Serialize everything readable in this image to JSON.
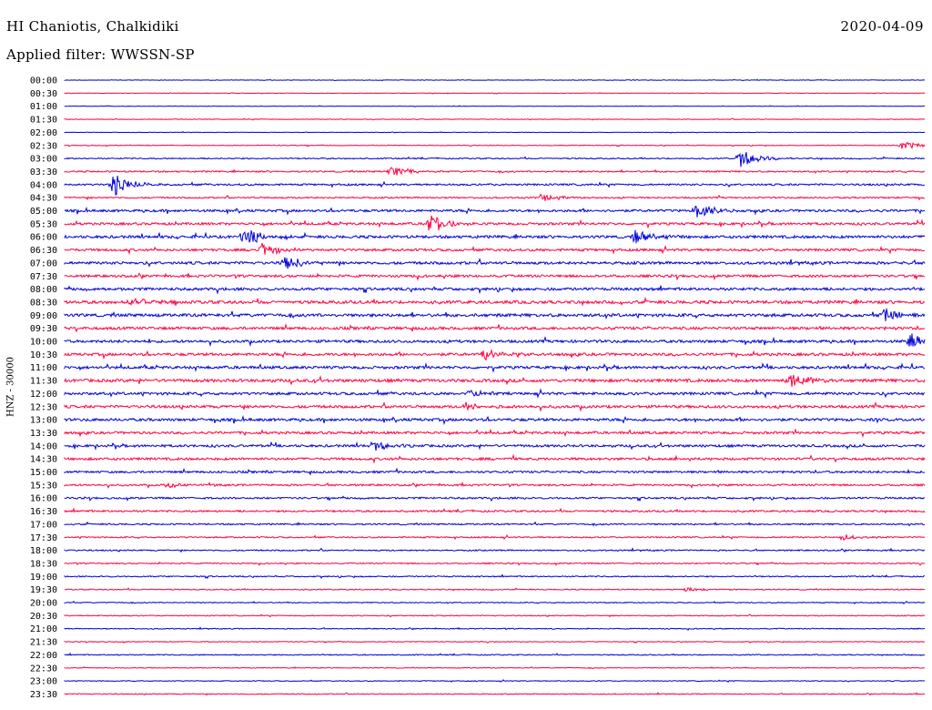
{
  "header": {
    "title": "HI Chaniotis, Chalkidiki",
    "date": "2020-04-09",
    "filter": "Applied filter: WWSSN-SP"
  },
  "colors": {
    "even_rows": "#0000d8",
    "odd_rows": "#ff0040",
    "text": "#000000"
  },
  "chart_data": {
    "type": "line",
    "title": "HI Chaniotis, Chalkidiki",
    "ylabel": "HNZ - 30000",
    "xlabel": "",
    "rows": [
      "00:00",
      "00:30",
      "01:00",
      "01:30",
      "02:00",
      "02:30",
      "03:00",
      "03:30",
      "04:00",
      "04:30",
      "05:00",
      "05:30",
      "06:00",
      "06:30",
      "07:00",
      "07:30",
      "08:00",
      "08:30",
      "09:00",
      "09:30",
      "10:00",
      "10:30",
      "11:00",
      "11:30",
      "12:00",
      "12:30",
      "13:00",
      "13:30",
      "14:00",
      "14:30",
      "15:00",
      "15:30",
      "16:00",
      "16:30",
      "17:00",
      "17:30",
      "18:00",
      "18:30",
      "19:00",
      "19:30",
      "20:00",
      "20:30",
      "21:00",
      "21:30",
      "22:00",
      "22:30",
      "23:00",
      "23:30"
    ],
    "noise_level": [
      0.3,
      0.3,
      0.3,
      0.4,
      0.3,
      0.5,
      0.8,
      1.0,
      1.2,
      1.0,
      1.6,
      1.6,
      1.8,
      1.6,
      1.8,
      1.6,
      1.8,
      2.0,
      2.0,
      1.8,
      1.8,
      1.8,
      1.8,
      2.0,
      1.8,
      1.8,
      1.8,
      1.6,
      1.6,
      1.6,
      1.4,
      1.2,
      1.2,
      1.2,
      1.0,
      0.9,
      0.9,
      0.8,
      0.8,
      0.7,
      0.6,
      0.6,
      0.6,
      0.5,
      0.7,
      0.5,
      0.5,
      0.6
    ],
    "events": [
      {
        "row": 5,
        "pos": 0.975,
        "amp": 5
      },
      {
        "row": 6,
        "pos": 0.787,
        "amp": 10
      },
      {
        "row": 7,
        "pos": 0.38,
        "amp": 6
      },
      {
        "row": 8,
        "pos": 0.058,
        "amp": 12
      },
      {
        "row": 9,
        "pos": 0.555,
        "amp": 4
      },
      {
        "row": 10,
        "pos": 0.735,
        "amp": 9
      },
      {
        "row": 11,
        "pos": 0.425,
        "amp": 12
      },
      {
        "row": 12,
        "pos": 0.21,
        "amp": 9
      },
      {
        "row": 12,
        "pos": 0.665,
        "amp": 9
      },
      {
        "row": 13,
        "pos": 0.23,
        "amp": 8
      },
      {
        "row": 14,
        "pos": 0.258,
        "amp": 7
      },
      {
        "row": 17,
        "pos": 0.08,
        "amp": 5
      },
      {
        "row": 18,
        "pos": 0.955,
        "amp": 7
      },
      {
        "row": 20,
        "pos": 0.985,
        "amp": 9
      },
      {
        "row": 21,
        "pos": 0.49,
        "amp": 7
      },
      {
        "row": 23,
        "pos": 0.845,
        "amp": 9
      },
      {
        "row": 24,
        "pos": 0.47,
        "amp": 5
      },
      {
        "row": 25,
        "pos": 0.465,
        "amp": 5
      },
      {
        "row": 28,
        "pos": 0.36,
        "amp": 5
      },
      {
        "row": 31,
        "pos": 0.12,
        "amp": 3
      },
      {
        "row": 35,
        "pos": 0.905,
        "amp": 3
      },
      {
        "row": 39,
        "pos": 0.725,
        "amp": 3
      }
    ]
  }
}
